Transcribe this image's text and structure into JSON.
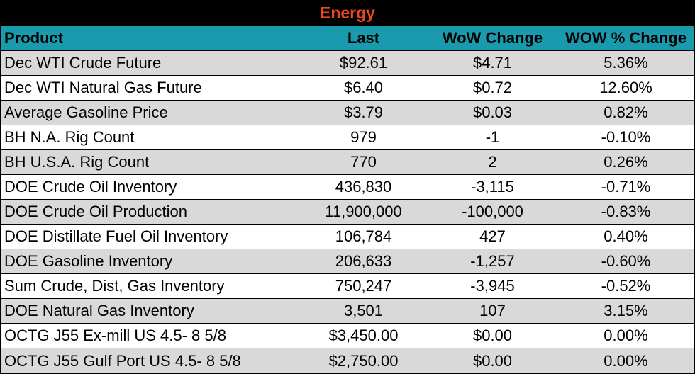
{
  "title": "Energy",
  "columns": [
    "Product",
    "Last",
    "WoW Change",
    "WOW % Change"
  ],
  "colors": {
    "header_bg": "#1a9aad",
    "title_bg": "#000000",
    "title_text": "#e8491d",
    "row_alt": "#d9d9d9"
  },
  "rows": [
    [
      "Dec WTI Crude Future",
      "$92.61",
      "$4.71",
      "5.36%"
    ],
    [
      "Dec WTI Natural Gas Future",
      "$6.40",
      "$0.72",
      "12.60%"
    ],
    [
      "Average Gasoline Price",
      "$3.79",
      "$0.03",
      "0.82%"
    ],
    [
      "BH N.A. Rig Count",
      "979",
      "-1",
      "-0.10%"
    ],
    [
      "BH U.S.A. Rig Count",
      "770",
      "2",
      "0.26%"
    ],
    [
      "DOE Crude Oil Inventory",
      "436,830",
      "-3,115",
      "-0.71%"
    ],
    [
      "DOE Crude Oil Production",
      "11,900,000",
      "-100,000",
      "-0.83%"
    ],
    [
      "DOE Distillate Fuel Oil Inventory",
      "106,784",
      "427",
      "0.40%"
    ],
    [
      "DOE Gasoline Inventory",
      "206,633",
      "-1,257",
      "-0.60%"
    ],
    [
      "Sum Crude, Dist, Gas Inventory",
      "750,247",
      "-3,945",
      "-0.52%"
    ],
    [
      "DOE Natural Gas Inventory",
      "3,501",
      "107",
      "3.15%"
    ],
    [
      "OCTG J55 Ex-mill US 4.5- 8 5/8",
      "$3,450.00",
      "$0.00",
      "0.00%"
    ],
    [
      "OCTG J55 Gulf Port US 4.5- 8 5/8",
      "$2,750.00",
      "$0.00",
      "0.00%"
    ]
  ]
}
